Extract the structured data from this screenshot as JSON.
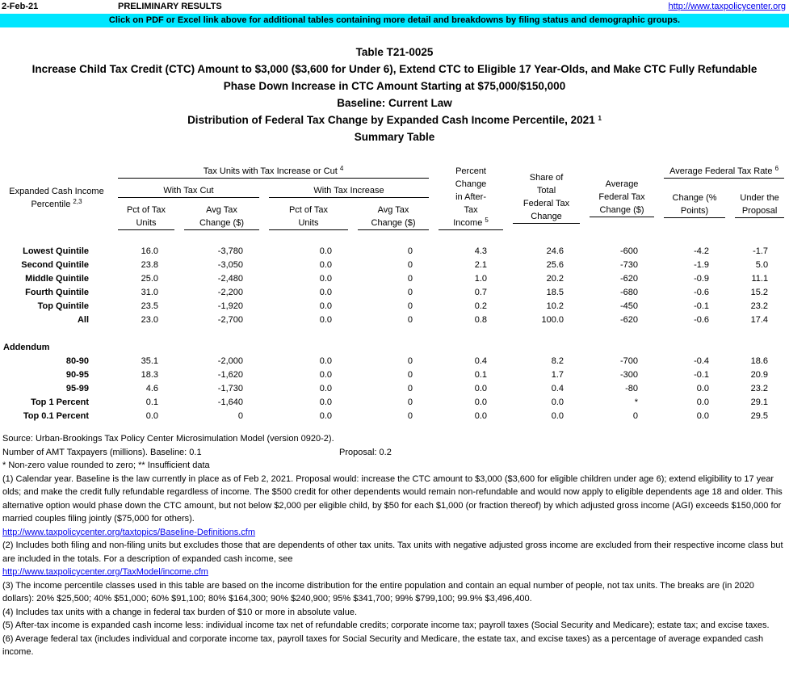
{
  "header": {
    "date": "2-Feb-21",
    "status": "PRELIMINARY RESULTS",
    "url": "http://www.taxpolicycenter.org",
    "banner": "Click on PDF or Excel link above for additional tables containing more detail and breakdowns by filing status and demographic groups."
  },
  "titles": [
    "Table T21-0025",
    "Increase Child Tax Credit (CTC) Amount to $3,000 ($3,600 for Under 6), Extend CTC to Eligible 17 Year-Olds, and Make CTC Fully Refundable",
    "Phase Down Increase in CTC Amount Starting at $75,000/$150,000",
    "Baseline: Current Law",
    "Distribution of Federal Tax Change by Expanded Cash Income Percentile, 2021",
    "Summary Table"
  ],
  "title_footnote": "1",
  "table": {
    "columns": {
      "percentile": {
        "text": "Expanded Cash Income Percentile",
        "note": "2,3"
      },
      "units_group": {
        "text": "Tax Units with Tax Increase or Cut",
        "note": "4"
      },
      "cut": "With Tax Cut",
      "increase": "With Tax Increase",
      "cut_pct": "Pct of Tax Units",
      "cut_avg": "Avg Tax Change ($)",
      "inc_pct": "Pct of Tax Units",
      "inc_avg": "Avg Tax Change ($)",
      "after_tax": {
        "text": "Percent Change in After-Tax Income",
        "note": "5"
      },
      "share": "Share of Total Federal Tax Change",
      "avg_change": "Average Federal Tax Change ($)",
      "rate_group": {
        "text": "Average Federal Tax Rate",
        "note": "6"
      },
      "rate_change": "Change (% Points)",
      "rate_under": "Under the Proposal"
    },
    "rows": [
      {
        "label": "Lowest Quintile",
        "values": [
          "16.0",
          "-3,780",
          "0.0",
          "0",
          "4.3",
          "24.6",
          "-600",
          "-4.2",
          "-1.7"
        ]
      },
      {
        "label": "Second Quintile",
        "values": [
          "23.8",
          "-3,050",
          "0.0",
          "0",
          "2.1",
          "25.6",
          "-730",
          "-1.9",
          "5.0"
        ]
      },
      {
        "label": "Middle Quintile",
        "values": [
          "25.0",
          "-2,480",
          "0.0",
          "0",
          "1.0",
          "20.2",
          "-620",
          "-0.9",
          "11.1"
        ]
      },
      {
        "label": "Fourth Quintile",
        "values": [
          "31.0",
          "-2,200",
          "0.0",
          "0",
          "0.7",
          "18.5",
          "-680",
          "-0.6",
          "15.2"
        ]
      },
      {
        "label": "Top Quintile",
        "values": [
          "23.5",
          "-1,920",
          "0.0",
          "0",
          "0.2",
          "10.2",
          "-450",
          "-0.1",
          "23.2"
        ]
      },
      {
        "label": "All",
        "values": [
          "23.0",
          "-2,700",
          "0.0",
          "0",
          "0.8",
          "100.0",
          "-620",
          "-0.6",
          "17.4"
        ]
      }
    ],
    "addendum": {
      "label": "Addendum",
      "rows": [
        {
          "label": "80-90",
          "values": [
            "35.1",
            "-2,000",
            "0.0",
            "0",
            "0.4",
            "8.2",
            "-700",
            "-0.4",
            "18.6"
          ]
        },
        {
          "label": "90-95",
          "values": [
            "18.3",
            "-1,620",
            "0.0",
            "0",
            "0.1",
            "1.7",
            "-300",
            "-0.1",
            "20.9"
          ]
        },
        {
          "label": "95-99",
          "values": [
            "4.6",
            "-1,730",
            "0.0",
            "0",
            "0.0",
            "0.4",
            "-80",
            "0.0",
            "23.2"
          ]
        },
        {
          "label": "Top 1 Percent",
          "values": [
            "0.1",
            "-1,640",
            "0.0",
            "0",
            "0.0",
            "0.0",
            "*",
            "0.0",
            "29.1"
          ]
        },
        {
          "label": "Top 0.1 Percent",
          "values": [
            "0.0",
            "0",
            "0.0",
            "0",
            "0.0",
            "0.0",
            "0",
            "0.0",
            "29.5"
          ]
        }
      ]
    }
  },
  "notes": {
    "source": "Source: Urban-Brookings Tax Policy Center Microsimulation Model (version 0920-2).",
    "amt": "Number of AMT Taxpayers (millions).  Baseline: 0.1",
    "amt_proposal": "Proposal: 0.2",
    "symbols": "* Non-zero value rounded to zero; ** Insufficient data",
    "n1": "(1) Calendar year. Baseline is the law currently in place as of Feb 2, 2021. Proposal would: increase the CTC amount to $3,000 ($3,600 for eligible children under age 6); extend eligibility to 17 year olds; and make the credit fully refundable regardless of income. The $500 credit for other dependents would remain non-refundable and would now apply to eligible dependents age 18 and older. This alternative option would phase down the CTC amount, but not below $2,000 per eligible child, by $50 for each $1,000 (or fraction thereof) by which adjusted gross income (AGI) exceeds $150,000 for married couples filing jointly ($75,000 for others).",
    "link1": "http://www.taxpolicycenter.org/taxtopics/Baseline-Definitions.cfm",
    "n2": "(2) Includes both filing and non-filing units but excludes those that are dependents of other tax units. Tax units with negative adjusted gross income are excluded from their respective income class but are included in the totals. For a description of expanded cash income, see",
    "link2": "http://www.taxpolicycenter.org/TaxModel/income.cfm",
    "n3": "(3) The income percentile classes used in this table are based on the income distribution for the entire population and contain an equal number of people, not tax units. The breaks are (in 2020 dollars): 20% $25,500; 40% $51,000; 60% $91,100; 80% $164,300; 90% $240,900; 95% $341,700; 99% $799,100; 99.9% $3,496,400.",
    "n4": "(4) Includes tax units with a change in federal tax burden of $10 or more in absolute value.",
    "n5": "(5) After-tax income is expanded cash income less: individual income tax net of refundable credits; corporate income tax; payroll taxes (Social Security and Medicare); estate tax; and excise taxes.",
    "n6": "(6) Average federal tax (includes individual and corporate income tax, payroll taxes for Social Security and Medicare, the estate tax, and excise taxes) as a percentage of average expanded cash income."
  }
}
